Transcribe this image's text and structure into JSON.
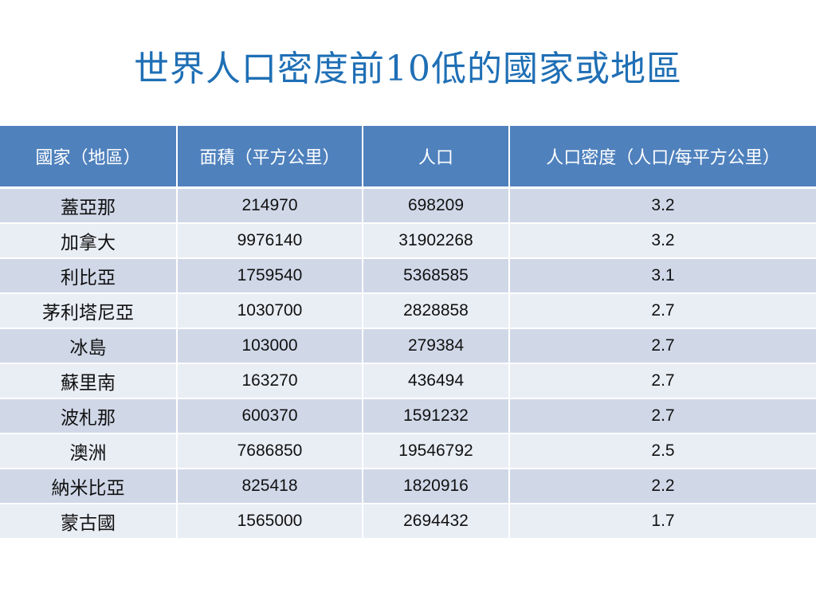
{
  "slide": {
    "title": "世界人口密度前10低的國家或地區"
  },
  "table": {
    "headers": [
      "國家（地區）",
      "面積（平方公里）",
      "人口",
      "人口密度（人口/每平方公里）"
    ],
    "rows": [
      {
        "country": "蓋亞那",
        "area": "214970",
        "population": "698209",
        "density": "3.2"
      },
      {
        "country": "加拿大",
        "area": "9976140",
        "population": "31902268",
        "density": "3.2"
      },
      {
        "country": "利比亞",
        "area": "1759540",
        "population": "5368585",
        "density": "3.1"
      },
      {
        "country": "茅利塔尼亞",
        "area": "1030700",
        "population": "2828858",
        "density": "2.7"
      },
      {
        "country": "冰島",
        "area": "103000",
        "population": "279384",
        "density": "2.7"
      },
      {
        "country": "蘇里南",
        "area": "163270",
        "population": "436494",
        "density": "2.7"
      },
      {
        "country": "波札那",
        "area": "600370",
        "population": "1591232",
        "density": "2.7"
      },
      {
        "country": "澳洲",
        "area": "7686850",
        "population": "19546792",
        "density": "2.5"
      },
      {
        "country": "納米比亞",
        "area": "825418",
        "population": "1820916",
        "density": "2.2"
      },
      {
        "country": "蒙古國",
        "area": "1565000",
        "population": "2694432",
        "density": "1.7"
      }
    ]
  },
  "colors": {
    "title": "#1f6fb5",
    "header_bg": "#4f81bd",
    "row_odd": "#d0d8e8",
    "row_even": "#e9edf4"
  }
}
